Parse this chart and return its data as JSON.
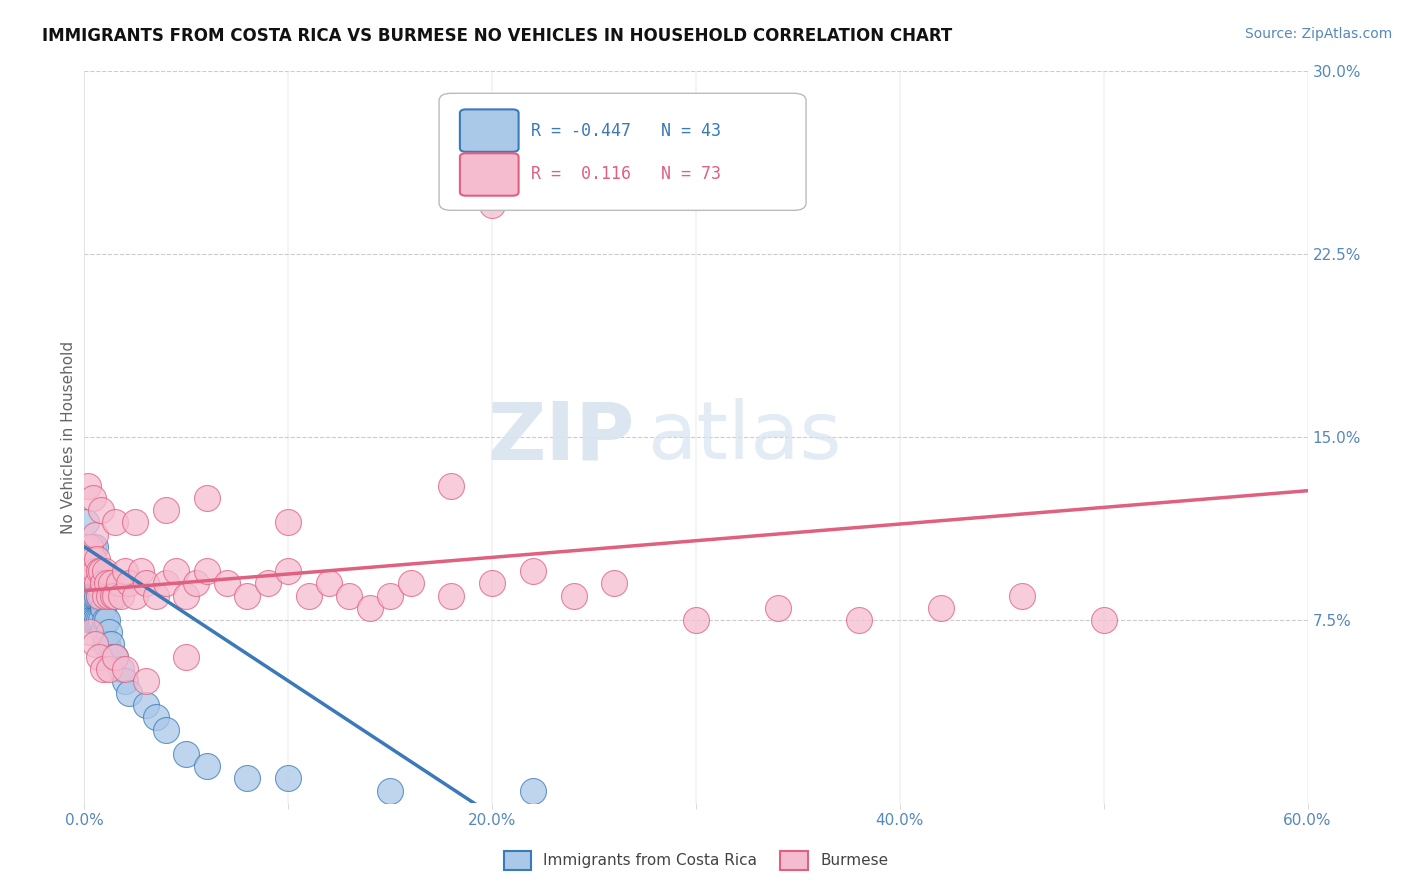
{
  "title": "IMMIGRANTS FROM COSTA RICA VS BURMESE NO VEHICLES IN HOUSEHOLD CORRELATION CHART",
  "source": "Source: ZipAtlas.com",
  "ylabel": "No Vehicles in Household",
  "xlim": [
    0.0,
    0.6
  ],
  "ylim": [
    0.0,
    0.3
  ],
  "xticks": [
    0.0,
    0.1,
    0.2,
    0.3,
    0.4,
    0.5,
    0.6
  ],
  "xticklabels": [
    "0.0%",
    "",
    "20.0%",
    "",
    "40.0%",
    "",
    "60.0%"
  ],
  "yticks_right": [
    0.075,
    0.15,
    0.225,
    0.3
  ],
  "ytick_right_labels": [
    "7.5%",
    "15.0%",
    "22.5%",
    "30.0%"
  ],
  "grid_color": "#cccccc",
  "background_color": "#ffffff",
  "legend1_label": "Immigrants from Costa Rica",
  "legend2_label": "Burmese",
  "R1": "-0.447",
  "N1": "43",
  "R2": "0.116",
  "N2": "73",
  "scatter1_color": "#aac8e8",
  "scatter2_color": "#f5bcd0",
  "line1_color": "#3a7ab8",
  "line2_color": "#e06080",
  "watermark_zip": "ZIP",
  "watermark_atlas": "atlas",
  "title_fontsize": 12,
  "source_fontsize": 10,
  "axis_label_fontsize": 11,
  "tick_fontsize": 11,
  "scatter1_x": [
    0.001,
    0.002,
    0.002,
    0.003,
    0.003,
    0.003,
    0.004,
    0.004,
    0.004,
    0.004,
    0.005,
    0.005,
    0.005,
    0.005,
    0.006,
    0.006,
    0.006,
    0.007,
    0.007,
    0.008,
    0.008,
    0.009,
    0.009,
    0.01,
    0.01,
    0.011,
    0.011,
    0.012,
    0.013,
    0.014,
    0.015,
    0.018,
    0.02,
    0.022,
    0.03,
    0.035,
    0.04,
    0.05,
    0.06,
    0.08,
    0.1,
    0.15,
    0.22
  ],
  "scatter1_y": [
    0.115,
    0.095,
    0.105,
    0.095,
    0.085,
    0.075,
    0.105,
    0.095,
    0.085,
    0.075,
    0.105,
    0.095,
    0.085,
    0.075,
    0.095,
    0.085,
    0.075,
    0.085,
    0.075,
    0.085,
    0.075,
    0.08,
    0.07,
    0.075,
    0.065,
    0.075,
    0.065,
    0.07,
    0.065,
    0.06,
    0.06,
    0.055,
    0.05,
    0.045,
    0.04,
    0.035,
    0.03,
    0.02,
    0.015,
    0.01,
    0.01,
    0.005,
    0.005
  ],
  "scatter2_x": [
    0.001,
    0.002,
    0.003,
    0.003,
    0.004,
    0.005,
    0.005,
    0.006,
    0.006,
    0.007,
    0.007,
    0.008,
    0.009,
    0.01,
    0.01,
    0.011,
    0.012,
    0.013,
    0.014,
    0.015,
    0.017,
    0.018,
    0.02,
    0.022,
    0.025,
    0.028,
    0.03,
    0.035,
    0.04,
    0.045,
    0.05,
    0.055,
    0.06,
    0.07,
    0.08,
    0.09,
    0.1,
    0.11,
    0.12,
    0.13,
    0.14,
    0.15,
    0.16,
    0.18,
    0.2,
    0.22,
    0.24,
    0.26,
    0.3,
    0.34,
    0.38,
    0.42,
    0.46,
    0.5,
    0.003,
    0.005,
    0.007,
    0.009,
    0.012,
    0.015,
    0.02,
    0.03,
    0.05,
    0.002,
    0.004,
    0.008,
    0.015,
    0.025,
    0.04,
    0.06,
    0.1,
    0.18,
    0.2
  ],
  "scatter2_y": [
    0.105,
    0.095,
    0.105,
    0.095,
    0.1,
    0.11,
    0.095,
    0.1,
    0.09,
    0.095,
    0.085,
    0.095,
    0.09,
    0.095,
    0.085,
    0.09,
    0.085,
    0.09,
    0.085,
    0.085,
    0.09,
    0.085,
    0.095,
    0.09,
    0.085,
    0.095,
    0.09,
    0.085,
    0.09,
    0.095,
    0.085,
    0.09,
    0.095,
    0.09,
    0.085,
    0.09,
    0.095,
    0.085,
    0.09,
    0.085,
    0.08,
    0.085,
    0.09,
    0.085,
    0.09,
    0.095,
    0.085,
    0.09,
    0.075,
    0.08,
    0.075,
    0.08,
    0.085,
    0.075,
    0.07,
    0.065,
    0.06,
    0.055,
    0.055,
    0.06,
    0.055,
    0.05,
    0.06,
    0.13,
    0.125,
    0.12,
    0.115,
    0.115,
    0.12,
    0.125,
    0.115,
    0.13,
    0.245
  ]
}
